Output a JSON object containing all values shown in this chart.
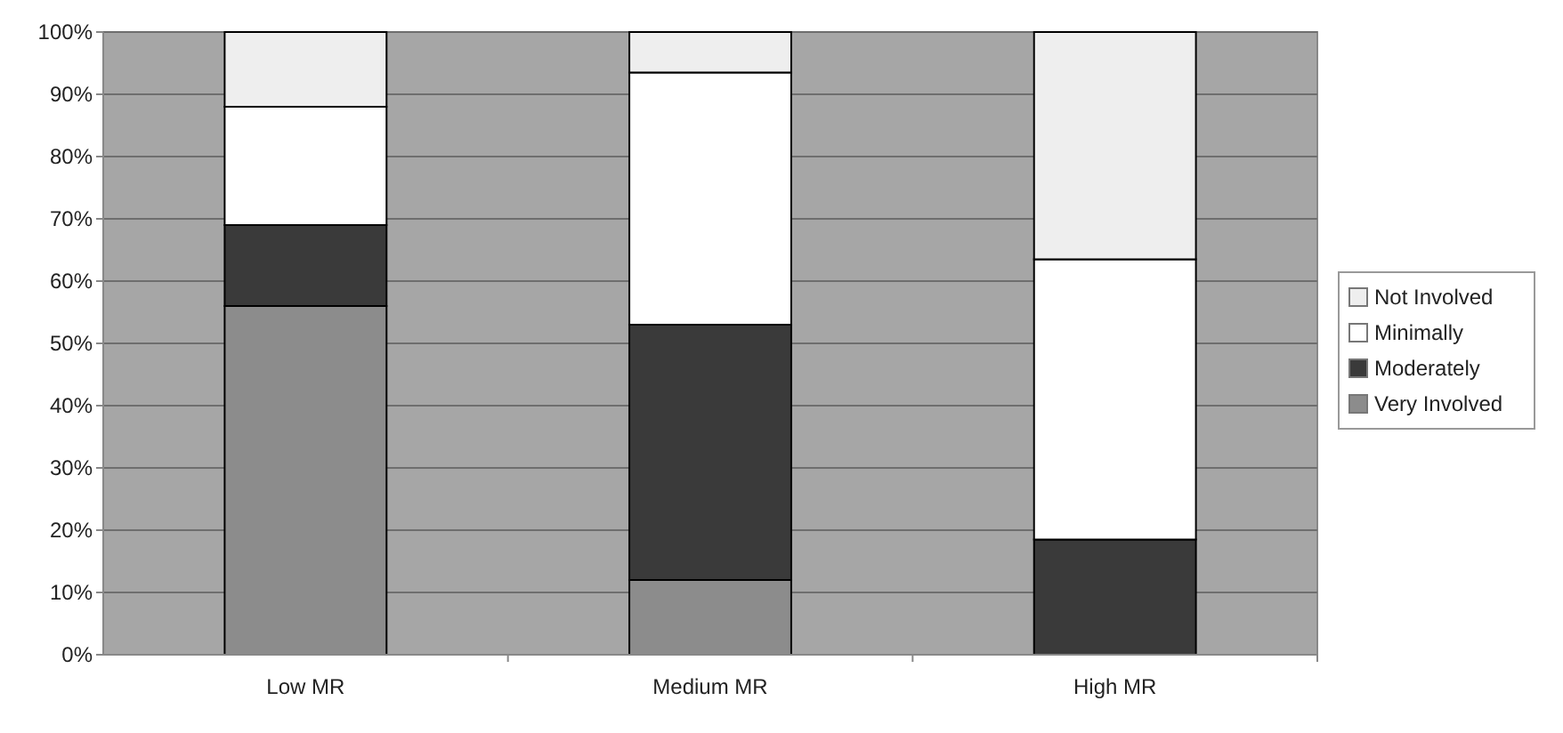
{
  "chart_data": {
    "type": "bar",
    "stacked": true,
    "categories": [
      "Low MR",
      "Medium MR",
      "High MR"
    ],
    "series": [
      {
        "name": "Very Involved",
        "color": "#8c8c8c",
        "values": [
          56,
          12,
          0
        ]
      },
      {
        "name": "Moderately",
        "color": "#3a3a3a",
        "values": [
          13,
          41,
          18.5
        ]
      },
      {
        "name": "Minimally",
        "color": "#ffffff",
        "values": [
          19,
          40.5,
          45
        ]
      },
      {
        "name": "Not Involved",
        "color": "#eeeeee",
        "values": [
          12,
          6.5,
          36.5
        ]
      }
    ],
    "ylim": [
      0,
      100
    ],
    "yticks": [
      {
        "value": 0,
        "label": "0%"
      },
      {
        "value": 10,
        "label": "10%"
      },
      {
        "value": 20,
        "label": "20%"
      },
      {
        "value": 30,
        "label": "30%"
      },
      {
        "value": 40,
        "label": "40%"
      },
      {
        "value": 50,
        "label": "50%"
      },
      {
        "value": 60,
        "label": "60%"
      },
      {
        "value": 70,
        "label": "70%"
      },
      {
        "value": 80,
        "label": "80%"
      },
      {
        "value": 90,
        "label": "90%"
      },
      {
        "value": 100,
        "label": "100%"
      }
    ],
    "grid": "y",
    "legend": "right"
  }
}
